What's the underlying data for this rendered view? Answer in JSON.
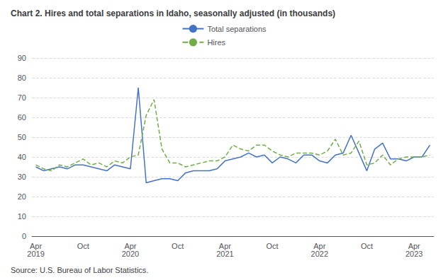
{
  "chart_data": {
    "type": "line",
    "title": "Chart 2. Hires and total separations in Idaho, seasonally adjusted (in thousands)",
    "annotations": [
      "Source: U.S. Bureau of Labor Statistics."
    ],
    "categories": [
      "Apr\n2019",
      null,
      null,
      null,
      null,
      null,
      "Oct",
      null,
      null,
      null,
      null,
      null,
      "Apr\n2020",
      null,
      null,
      null,
      null,
      null,
      "Oct",
      null,
      null,
      null,
      null,
      null,
      "Apr\n2021",
      null,
      null,
      null,
      null,
      null,
      "Oct",
      null,
      null,
      null,
      null,
      null,
      "Apr\n2022",
      null,
      null,
      null,
      null,
      null,
      "Oct",
      null,
      null,
      null,
      null,
      null,
      "Apr\n2023",
      null,
      null
    ],
    "series": [
      {
        "name": "Total separations",
        "color": "#4472c4",
        "line_style": "solid",
        "values": [
          35,
          33,
          34,
          35,
          34,
          36,
          36,
          35,
          34,
          33,
          36,
          35,
          34,
          75,
          27,
          28,
          29,
          29,
          28,
          32,
          33,
          33,
          33,
          34,
          38,
          39,
          40,
          42,
          40,
          41,
          37,
          40,
          39,
          37,
          41,
          41,
          38,
          37,
          41,
          42,
          51,
          42,
          33,
          44,
          47,
          39,
          39,
          38,
          40,
          40,
          46
        ]
      },
      {
        "name": "Hires",
        "color": "#70ad47",
        "line_style": "dashed",
        "values": [
          36,
          34,
          33,
          36,
          35,
          37,
          39,
          36,
          37,
          35,
          38,
          37,
          40,
          41,
          61,
          69,
          44,
          37,
          37,
          35,
          36,
          37,
          38,
          38,
          40,
          46,
          44,
          43,
          46,
          46,
          43,
          41,
          40,
          42,
          42,
          42,
          41,
          43,
          49,
          41,
          42,
          48,
          36,
          37,
          41,
          36,
          39,
          40,
          40,
          40,
          41
        ]
      }
    ],
    "ylim": [
      0,
      90
    ],
    "yticks": [
      0,
      10,
      20,
      30,
      40,
      50,
      60,
      70,
      80,
      90
    ],
    "grid": true,
    "legend": "top"
  }
}
